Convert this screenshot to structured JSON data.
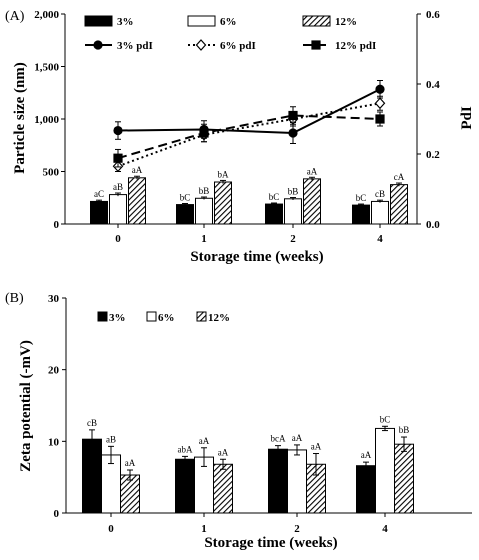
{
  "chart_data": [
    {
      "panel_label": "(A)",
      "type": "bar",
      "categories": [
        "0",
        "1",
        "2",
        "4"
      ],
      "xlabel": "Storage  time (weeks)",
      "ylabel": "Particle size (nm)",
      "ylim": [
        0,
        2000
      ],
      "yticks": [
        "0",
        "500",
        "1,000",
        "1,500",
        "2,000"
      ],
      "y2label": "PdI",
      "y2lim": [
        0,
        0.6
      ],
      "y2ticks": [
        "0.0",
        "0.2",
        "0.4",
        "0.6"
      ],
      "grid": false,
      "legend_placement": "top",
      "series": [
        {
          "name": "3%",
          "type": "bar",
          "fill": "solid",
          "color": "#000000",
          "values": [
            215,
            185,
            190,
            180
          ],
          "errors": [
            12,
            10,
            10,
            10
          ],
          "labels": [
            "aC",
            "bC",
            "bC",
            "bC"
          ]
        },
        {
          "name": "6%",
          "type": "bar",
          "fill": "open",
          "color": "#ffffff",
          "values": [
            280,
            245,
            240,
            215
          ],
          "errors": [
            15,
            12,
            12,
            12
          ],
          "labels": [
            "aB",
            "bB",
            "bB",
            "cB"
          ]
        },
        {
          "name": "12%",
          "type": "bar",
          "fill": "hatch",
          "color": "#000000",
          "values": [
            440,
            400,
            430,
            375
          ],
          "errors": [
            15,
            15,
            15,
            15
          ],
          "labels": [
            "aA",
            "bA",
            "aA",
            "cA"
          ]
        }
      ],
      "line_series": [
        {
          "name": "3% pdI",
          "marker": "circle",
          "line": "solid",
          "values": [
            0.267,
            0.27,
            0.26,
            0.385
          ],
          "errors": [
            0.025,
            0.025,
            0.03,
            0.025
          ]
        },
        {
          "name": "6% pdI",
          "marker": "diamond-open",
          "line": "dotted",
          "values": [
            0.165,
            0.255,
            0.3,
            0.345
          ],
          "errors": [
            0.015,
            0.02,
            0.02,
            0.02
          ]
        },
        {
          "name": "12% pdI",
          "marker": "square",
          "line": "dashed",
          "values": [
            0.188,
            0.26,
            0.31,
            0.3
          ],
          "errors": [
            0.025,
            0.025,
            0.025,
            0.02
          ]
        }
      ]
    },
    {
      "panel_label": "(B)",
      "type": "bar",
      "categories": [
        "0",
        "1",
        "2",
        "4"
      ],
      "xlabel": "Storage  time (weeks)",
      "ylabel": "Zeta potential (-mV)",
      "ylim": [
        0,
        30
      ],
      "yticks": [
        "0",
        "10",
        "20",
        "30"
      ],
      "grid": false,
      "legend_placement": "top-left",
      "series": [
        {
          "name": "3%",
          "fill": "solid",
          "color": "#000000",
          "values": [
            10.3,
            7.5,
            8.9,
            6.6
          ],
          "errors": [
            1.3,
            0.4,
            0.5,
            0.5
          ],
          "labels": [
            "cB",
            "abA",
            "bcA",
            "aA"
          ]
        },
        {
          "name": "6%",
          "fill": "open",
          "color": "#ffffff",
          "values": [
            8.1,
            7.8,
            8.8,
            11.8
          ],
          "errors": [
            1.2,
            1.3,
            0.7,
            0.3
          ],
          "labels": [
            "aB",
            "aA",
            "aA",
            "bC"
          ]
        },
        {
          "name": "12%",
          "fill": "hatch",
          "color": "#000000",
          "values": [
            5.3,
            6.8,
            6.8,
            9.6
          ],
          "errors": [
            0.7,
            0.7,
            1.5,
            1.0
          ],
          "labels": [
            "aA",
            "aA",
            "aA",
            "bB"
          ]
        }
      ]
    }
  ]
}
